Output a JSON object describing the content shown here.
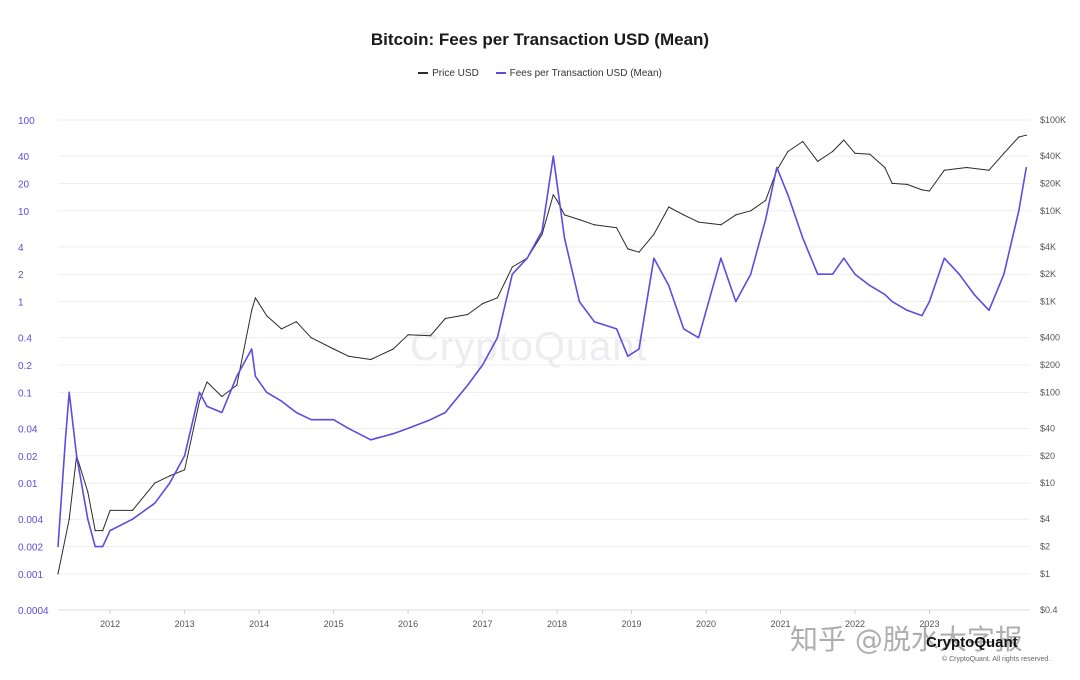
{
  "chart_data": {
    "type": "line",
    "title": "Bitcoin: Fees per Transaction USD (Mean)",
    "legend": [
      {
        "name": "Price USD",
        "color": "#2b2b2b"
      },
      {
        "name": "Fees per Transaction USD (Mean)",
        "color": "#5a4de0"
      }
    ],
    "legend_position": "top-center",
    "grid": true,
    "x_ticks": [
      "2012",
      "2013",
      "2014",
      "2015",
      "2016",
      "2017",
      "2018",
      "2019",
      "2020",
      "2021",
      "2022",
      "2023"
    ],
    "y_left": {
      "scale": "log",
      "range": [
        0.0004,
        100
      ],
      "ticks": [
        "100",
        "40",
        "20",
        "10",
        "4",
        "2",
        "1",
        "0.4",
        "0.2",
        "0.1",
        "0.04",
        "0.02",
        "0.01",
        "0.004",
        "0.002",
        "0.001",
        "0.0004"
      ]
    },
    "y_right": {
      "scale": "log",
      "range": [
        0.4,
        100000
      ],
      "ticks": [
        "$100K",
        "$40K",
        "$20K",
        "$10K",
        "$4K",
        "$2K",
        "$1K",
        "$400",
        "$200",
        "$100",
        "$40",
        "$20",
        "$10",
        "$4",
        "$2",
        "$1",
        "$0.4"
      ]
    },
    "series": [
      {
        "name": "Price USD",
        "axis": "right",
        "x": [
          2011.3,
          2011.45,
          2011.55,
          2011.7,
          2011.8,
          2011.9,
          2012.0,
          2012.3,
          2012.6,
          2012.8,
          2013.0,
          2013.2,
          2013.3,
          2013.5,
          2013.7,
          2013.9,
          2013.95,
          2014.1,
          2014.3,
          2014.5,
          2014.7,
          2015.0,
          2015.2,
          2015.5,
          2015.8,
          2016.0,
          2016.3,
          2016.5,
          2016.8,
          2017.0,
          2017.2,
          2017.4,
          2017.6,
          2017.8,
          2017.95,
          2018.0,
          2018.1,
          2018.3,
          2018.5,
          2018.8,
          2018.95,
          2019.1,
          2019.3,
          2019.5,
          2019.7,
          2019.9,
          2020.2,
          2020.4,
          2020.6,
          2020.8,
          2020.95,
          2021.1,
          2021.3,
          2021.5,
          2021.7,
          2021.85,
          2022.0,
          2022.2,
          2022.4,
          2022.5,
          2022.7,
          2022.9,
          2023.0,
          2023.2,
          2023.5,
          2023.8,
          2024.0,
          2024.2,
          2024.3
        ],
        "y": [
          1,
          4,
          20,
          8,
          3,
          3,
          5,
          5,
          10,
          12,
          14,
          80,
          130,
          90,
          120,
          800,
          1100,
          700,
          500,
          600,
          400,
          300,
          250,
          230,
          300,
          430,
          420,
          650,
          720,
          950,
          1100,
          2400,
          3000,
          5500,
          15000,
          13000,
          9000,
          8000,
          7000,
          6500,
          3800,
          3500,
          5500,
          11000,
          9000,
          7500,
          7000,
          9000,
          10000,
          13000,
          28000,
          45000,
          58000,
          35000,
          45000,
          60000,
          43000,
          42000,
          30000,
          20000,
          19500,
          17000,
          16500,
          28000,
          30000,
          28000,
          43000,
          65000,
          68000
        ]
      },
      {
        "name": "Fees per Transaction USD (Mean)",
        "axis": "left",
        "x": [
          2011.3,
          2011.4,
          2011.45,
          2011.55,
          2011.7,
          2011.8,
          2011.9,
          2012.0,
          2012.3,
          2012.6,
          2012.8,
          2013.0,
          2013.2,
          2013.3,
          2013.5,
          2013.7,
          2013.9,
          2013.95,
          2014.1,
          2014.3,
          2014.5,
          2014.7,
          2015.0,
          2015.2,
          2015.5,
          2015.8,
          2016.0,
          2016.3,
          2016.5,
          2016.8,
          2017.0,
          2017.2,
          2017.4,
          2017.6,
          2017.8,
          2017.95,
          2018.0,
          2018.1,
          2018.3,
          2018.5,
          2018.8,
          2018.95,
          2019.1,
          2019.3,
          2019.5,
          2019.7,
          2019.9,
          2020.2,
          2020.4,
          2020.6,
          2020.8,
          2020.95,
          2021.1,
          2021.3,
          2021.5,
          2021.7,
          2021.85,
          2022.0,
          2022.2,
          2022.4,
          2022.5,
          2022.7,
          2022.9,
          2023.0,
          2023.2,
          2023.4,
          2023.6,
          2023.8,
          2024.0,
          2024.2,
          2024.3
        ],
        "y": [
          0.002,
          0.03,
          0.1,
          0.02,
          0.004,
          0.002,
          0.002,
          0.003,
          0.004,
          0.006,
          0.01,
          0.02,
          0.1,
          0.07,
          0.06,
          0.15,
          0.3,
          0.15,
          0.1,
          0.08,
          0.06,
          0.05,
          0.05,
          0.04,
          0.03,
          0.035,
          0.04,
          0.05,
          0.06,
          0.12,
          0.2,
          0.4,
          2,
          3,
          6,
          40,
          20,
          5,
          1,
          0.6,
          0.5,
          0.25,
          0.3,
          3,
          1.5,
          0.5,
          0.4,
          3,
          1,
          2,
          8,
          30,
          15,
          5,
          2,
          2,
          3,
          2,
          1.5,
          1.2,
          1,
          0.8,
          0.7,
          1,
          3,
          2,
          1.2,
          0.8,
          2,
          10,
          30
        ]
      }
    ]
  },
  "watermark": "CryptoQuant",
  "brand": "CryptoQuant",
  "copyright": "© CryptoQuant. All rights reserved.",
  "overlay_text": "知乎 @脱水大字报"
}
